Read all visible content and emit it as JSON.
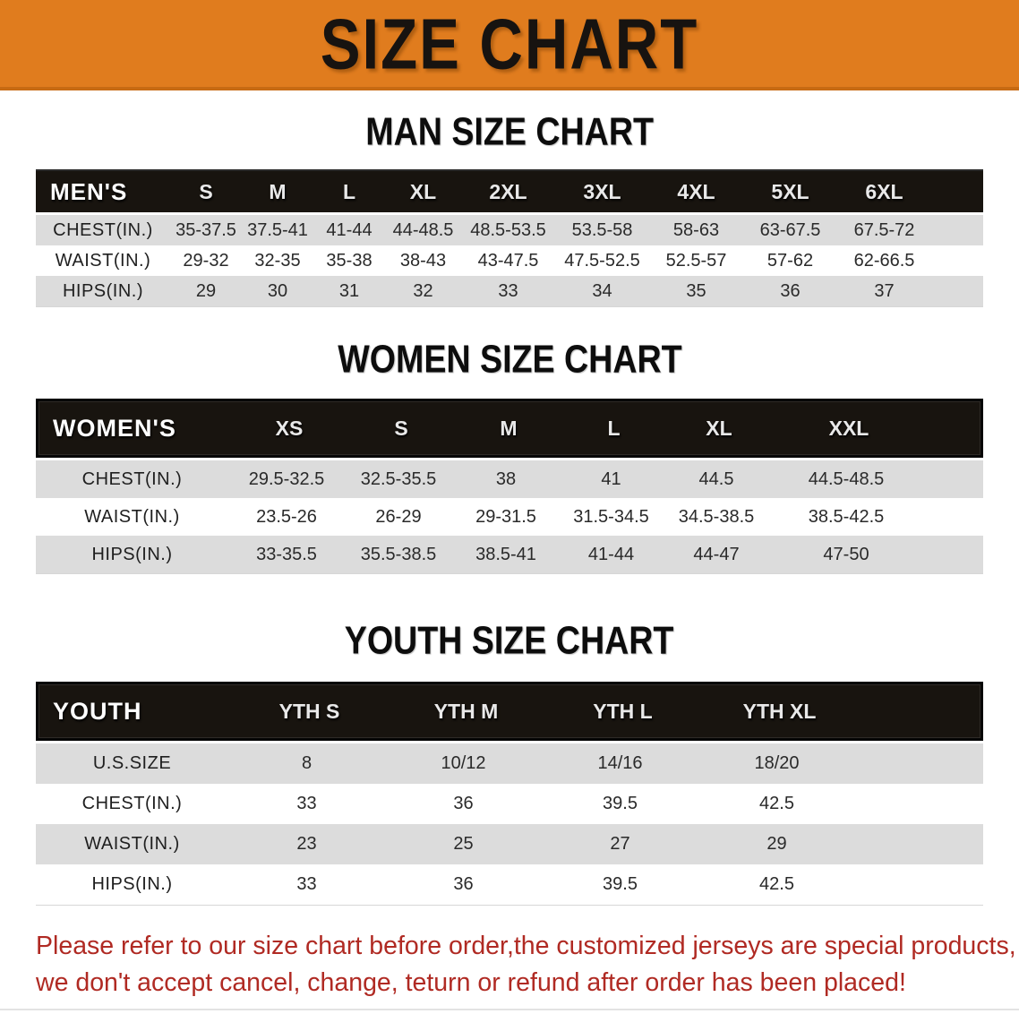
{
  "banner": {
    "title": "SIZE CHART"
  },
  "colors": {
    "banner_orange": "#E07C1E",
    "header_bar_black": "#18140F",
    "row_gray": "#DCDCDC",
    "note_red": "#B02A23"
  },
  "men": {
    "heading": "MAN SIZE CHART",
    "label": "MEN'S",
    "cols": [
      "S",
      "M",
      "L",
      "XL",
      "2XL",
      "3XL",
      "4XL",
      "5XL",
      "6XL"
    ],
    "rows": [
      {
        "label": "CHEST(IN.)",
        "values": [
          "35-37.5",
          "37.5-41",
          "41-44",
          "44-48.5",
          "48.5-53.5",
          "53.5-58",
          "58-63",
          "63-67.5",
          "67.5-72"
        ]
      },
      {
        "label": "WAIST(IN.)",
        "values": [
          "29-32",
          "32-35",
          "35-38",
          "38-43",
          "43-47.5",
          "47.5-52.5",
          "52.5-57",
          "57-62",
          "62-66.5"
        ]
      },
      {
        "label": "HIPS(IN.)",
        "values": [
          "29",
          "30",
          "31",
          "32",
          "33",
          "34",
          "35",
          "36",
          "37"
        ]
      }
    ]
  },
  "women": {
    "heading": "WOMEN SIZE CHART",
    "label": "WOMEN'S",
    "cols": [
      "XS",
      "S",
      "M",
      "L",
      "XL",
      "XXL"
    ],
    "rows": [
      {
        "label": "CHEST(IN.)",
        "values": [
          "29.5-32.5",
          "32.5-35.5",
          "38",
          "41",
          "44.5",
          "44.5-48.5"
        ]
      },
      {
        "label": "WAIST(IN.)",
        "values": [
          "23.5-26",
          "26-29",
          "29-31.5",
          "31.5-34.5",
          "34.5-38.5",
          "38.5-42.5"
        ]
      },
      {
        "label": "HIPS(IN.)",
        "values": [
          "33-35.5",
          "35.5-38.5",
          "38.5-41",
          "41-44",
          "44-47",
          "47-50"
        ]
      }
    ]
  },
  "youth": {
    "heading": "YOUTH SIZE CHART",
    "label": "YOUTH",
    "cols": [
      "YTH S",
      "YTH M",
      "YTH L",
      "YTH XL"
    ],
    "rows": [
      {
        "label": "U.S.SIZE",
        "values": [
          "8",
          "10/12",
          "14/16",
          "18/20"
        ]
      },
      {
        "label": "CHEST(IN.)",
        "values": [
          "33",
          "36",
          "39.5",
          "42.5"
        ]
      },
      {
        "label": "WAIST(IN.)",
        "values": [
          "23",
          "25",
          "27",
          "29"
        ]
      },
      {
        "label": "HIPS(IN.)",
        "values": [
          "33",
          "36",
          "39.5",
          "42.5"
        ]
      }
    ]
  },
  "note": {
    "line1": "Please refer to our size chart before order,the customized jerseys are special products,",
    "line2": "we don't accept cancel, change, teturn or refund after order has been placed!"
  }
}
